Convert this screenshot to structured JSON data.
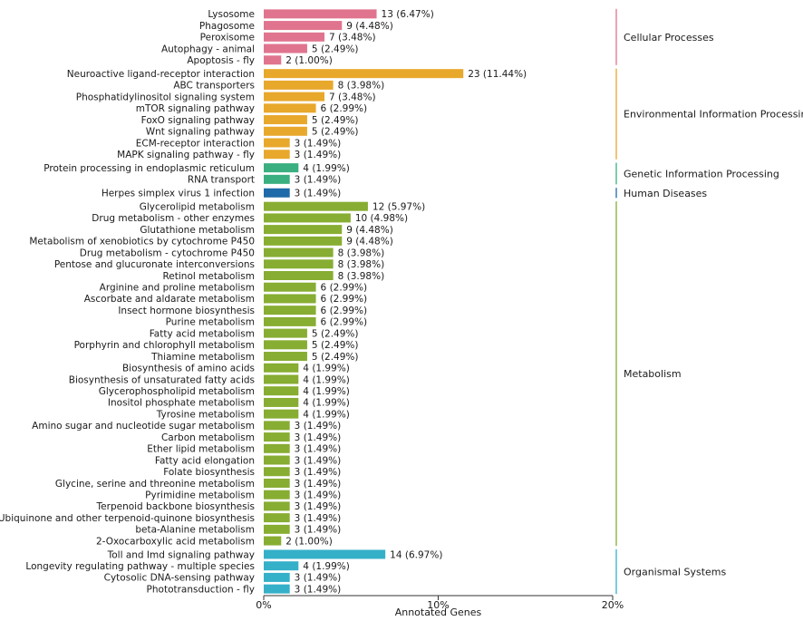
{
  "chart_data": {
    "type": "bar",
    "orientation": "horizontal",
    "xlabel": "Annotated Genes",
    "xlim": [
      0,
      20
    ],
    "xticks": [
      0,
      10,
      20
    ],
    "xtick_labels": [
      "0%",
      "10%",
      "20%"
    ],
    "groups": [
      {
        "name": "Cellular Processes",
        "color": "#e0748f",
        "items": [
          {
            "label": "Lysosome",
            "count": 13,
            "percent": 6.47
          },
          {
            "label": "Phagosome",
            "count": 9,
            "percent": 4.48
          },
          {
            "label": "Peroxisome",
            "count": 7,
            "percent": 3.48
          },
          {
            "label": "Autophagy - animal",
            "count": 5,
            "percent": 2.49
          },
          {
            "label": "Apoptosis - fly",
            "count": 2,
            "percent": 1.0
          }
        ]
      },
      {
        "name": "Environmental Information Processing",
        "color": "#e8a82c",
        "items": [
          {
            "label": "Neuroactive ligand-receptor interaction",
            "count": 23,
            "percent": 11.44
          },
          {
            "label": "ABC transporters",
            "count": 8,
            "percent": 3.98
          },
          {
            "label": "Phosphatidylinositol signaling system",
            "count": 7,
            "percent": 3.48
          },
          {
            "label": "mTOR signaling pathway",
            "count": 6,
            "percent": 2.99
          },
          {
            "label": "FoxO signaling pathway",
            "count": 5,
            "percent": 2.49
          },
          {
            "label": "Wnt signaling pathway",
            "count": 5,
            "percent": 2.49
          },
          {
            "label": "ECM-receptor interaction",
            "count": 3,
            "percent": 1.49
          },
          {
            "label": "MAPK signaling pathway - fly",
            "count": 3,
            "percent": 1.49
          }
        ]
      },
      {
        "name": "Genetic Information Processing",
        "color": "#3aaf80",
        "items": [
          {
            "label": "Protein processing in endoplasmic reticulum",
            "count": 4,
            "percent": 1.99
          },
          {
            "label": "RNA transport",
            "count": 3,
            "percent": 1.49
          }
        ]
      },
      {
        "name": "Human Diseases",
        "color": "#1f6aa8",
        "items": [
          {
            "label": "Herpes simplex virus 1 infection",
            "count": 3,
            "percent": 1.49
          }
        ]
      },
      {
        "name": "Metabolism",
        "color": "#87ad32",
        "items": [
          {
            "label": "Glycerolipid metabolism",
            "count": 12,
            "percent": 5.97
          },
          {
            "label": "Drug metabolism - other enzymes",
            "count": 10,
            "percent": 4.98
          },
          {
            "label": "Glutathione metabolism",
            "count": 9,
            "percent": 4.48
          },
          {
            "label": "Metabolism of xenobiotics by cytochrome P450",
            "count": 9,
            "percent": 4.48
          },
          {
            "label": "Drug metabolism - cytochrome P450",
            "count": 8,
            "percent": 3.98
          },
          {
            "label": "Pentose and glucuronate interconversions",
            "count": 8,
            "percent": 3.98
          },
          {
            "label": "Retinol metabolism",
            "count": 8,
            "percent": 3.98
          },
          {
            "label": "Arginine and proline metabolism",
            "count": 6,
            "percent": 2.99
          },
          {
            "label": "Ascorbate and aldarate metabolism",
            "count": 6,
            "percent": 2.99
          },
          {
            "label": "Insect hormone biosynthesis",
            "count": 6,
            "percent": 2.99
          },
          {
            "label": "Purine metabolism",
            "count": 6,
            "percent": 2.99
          },
          {
            "label": "Fatty acid metabolism",
            "count": 5,
            "percent": 2.49
          },
          {
            "label": "Porphyrin and chlorophyll metabolism",
            "count": 5,
            "percent": 2.49
          },
          {
            "label": "Thiamine metabolism",
            "count": 5,
            "percent": 2.49
          },
          {
            "label": "Biosynthesis of amino acids",
            "count": 4,
            "percent": 1.99
          },
          {
            "label": "Biosynthesis of unsaturated fatty acids",
            "count": 4,
            "percent": 1.99
          },
          {
            "label": "Glycerophospholipid metabolism",
            "count": 4,
            "percent": 1.99
          },
          {
            "label": "Inositol phosphate metabolism",
            "count": 4,
            "percent": 1.99
          },
          {
            "label": "Tyrosine metabolism",
            "count": 4,
            "percent": 1.99
          },
          {
            "label": "Amino sugar and nucleotide sugar metabolism",
            "count": 3,
            "percent": 1.49
          },
          {
            "label": "Carbon metabolism",
            "count": 3,
            "percent": 1.49
          },
          {
            "label": "Ether lipid metabolism",
            "count": 3,
            "percent": 1.49
          },
          {
            "label": "Fatty acid elongation",
            "count": 3,
            "percent": 1.49
          },
          {
            "label": "Folate biosynthesis",
            "count": 3,
            "percent": 1.49
          },
          {
            "label": "Glycine, serine and threonine metabolism",
            "count": 3,
            "percent": 1.49
          },
          {
            "label": "Pyrimidine metabolism",
            "count": 3,
            "percent": 1.49
          },
          {
            "label": "Terpenoid backbone biosynthesis",
            "count": 3,
            "percent": 1.49
          },
          {
            "label": "Ubiquinone and other terpenoid-quinone biosynthesis",
            "count": 3,
            "percent": 1.49
          },
          {
            "label": "beta-Alanine metabolism",
            "count": 3,
            "percent": 1.49
          },
          {
            "label": "2-Oxocarboxylic acid metabolism",
            "count": 2,
            "percent": 1.0
          }
        ]
      },
      {
        "name": "Organismal Systems",
        "color": "#35b0c9",
        "items": [
          {
            "label": "Toll and Imd signaling pathway",
            "count": 14,
            "percent": 6.97
          },
          {
            "label": "Longevity regulating pathway - multiple species",
            "count": 4,
            "percent": 1.99
          },
          {
            "label": "Cytosolic DNA-sensing pathway",
            "count": 3,
            "percent": 1.49
          },
          {
            "label": "Phototransduction - fly",
            "count": 3,
            "percent": 1.49
          }
        ]
      }
    ]
  }
}
